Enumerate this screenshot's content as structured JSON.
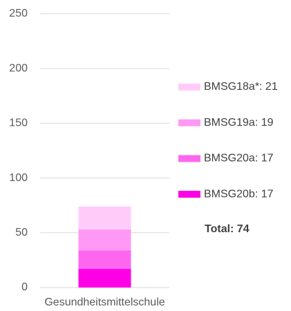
{
  "chart_data": {
    "type": "stacked_bar",
    "categories": [
      "Gesundheitsmittelschule"
    ],
    "series": [
      {
        "name": "BMSG20b: 17",
        "color": "#ff00e6",
        "values": [
          17
        ]
      },
      {
        "name": "BMSG20a: 17",
        "color": "#ff66f0",
        "values": [
          17
        ]
      },
      {
        "name": "BMSG19a: 19",
        "color": "#ff99f5",
        "values": [
          19
        ]
      },
      {
        "name": "BMSG18a*: 21",
        "color": "#ffccfa",
        "values": [
          21
        ]
      }
    ],
    "annotation": "Total: 74",
    "ylim": [
      0,
      250
    ],
    "yticks": [
      0,
      50,
      100,
      150,
      200,
      250
    ],
    "grid": true,
    "legend": "right"
  }
}
